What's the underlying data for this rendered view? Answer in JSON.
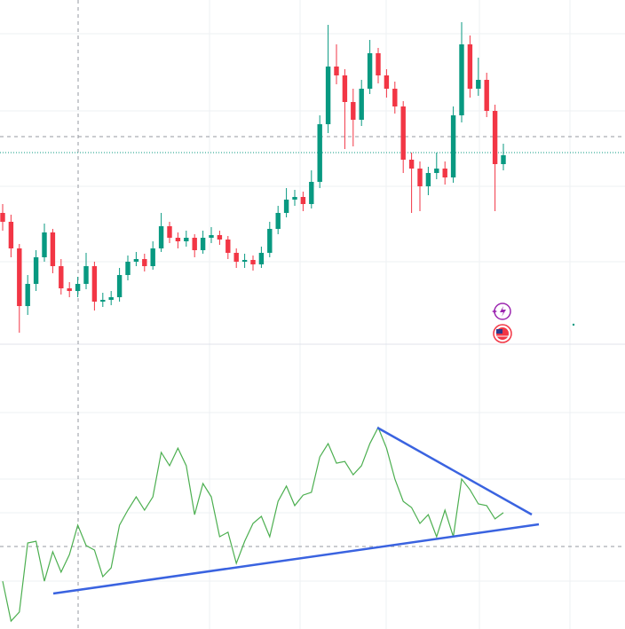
{
  "chart_data": [
    {
      "type": "candlestick",
      "up_color": "#089981",
      "down_color": "#f23645",
      "ylim": [
        0,
        390
      ],
      "open": [
        150,
        140,
        110,
        45,
        70,
        100,
        128,
        90,
        65,
        62,
        70,
        90,
        50,
        52,
        55,
        80,
        95,
        98,
        90,
        110,
        135,
        122,
        118,
        122,
        108,
        122,
        125,
        120,
        105,
        95,
        97,
        92,
        105,
        132,
        150,
        165,
        168,
        160,
        185,
        250,
        315,
        305,
        275,
        255,
        290,
        330,
        305,
        290,
        270,
        210,
        200,
        180,
        195,
        200,
        190,
        260,
        340,
        290,
        300,
        265,
        205
      ],
      "high": [
        160,
        148,
        115,
        80,
        108,
        138,
        132,
        98,
        72,
        78,
        105,
        95,
        60,
        62,
        88,
        102,
        106,
        104,
        118,
        150,
        140,
        128,
        130,
        126,
        130,
        134,
        130,
        124,
        110,
        104,
        102,
        112,
        140,
        158,
        178,
        176,
        174,
        198,
        260,
        362,
        340,
        312,
        290,
        300,
        345,
        336,
        312,
        298,
        276,
        218,
        208,
        202,
        218,
        208,
        270,
        365,
        350,
        325,
        308,
        272,
        228
      ],
      "low": [
        130,
        100,
        15,
        35,
        62,
        95,
        82,
        58,
        55,
        55,
        64,
        40,
        44,
        46,
        50,
        74,
        90,
        84,
        86,
        106,
        116,
        110,
        112,
        100,
        104,
        116,
        114,
        98,
        88,
        88,
        85,
        88,
        100,
        126,
        145,
        158,
        152,
        155,
        178,
        240,
        295,
        222,
        225,
        248,
        284,
        296,
        280,
        262,
        195,
        150,
        152,
        170,
        188,
        182,
        184,
        252,
        280,
        282,
        258,
        152,
        198
      ],
      "close": [
        140,
        110,
        45,
        70,
        100,
        128,
        90,
        65,
        62,
        70,
        90,
        50,
        52,
        55,
        80,
        95,
        98,
        90,
        110,
        135,
        122,
        118,
        122,
        108,
        122,
        125,
        120,
        105,
        95,
        97,
        92,
        105,
        132,
        150,
        165,
        168,
        160,
        185,
        250,
        315,
        305,
        275,
        255,
        290,
        330,
        305,
        290,
        270,
        210,
        200,
        180,
        195,
        200,
        190,
        260,
        340,
        290,
        300,
        265,
        205,
        215
      ]
    },
    {
      "type": "line",
      "color": "#4caf50",
      "ylim": [
        0,
        100
      ],
      "values": [
        16.9,
        2.8,
        6.0,
        30.4,
        31.0,
        16.9,
        27.3,
        20.1,
        26.3,
        36.7,
        29.5,
        27.9,
        18.5,
        21.6,
        36.7,
        42.0,
        46.7,
        42.0,
        46.7,
        62.4,
        57.7,
        63.9,
        57.7,
        40.4,
        51.4,
        46.7,
        32.6,
        34.2,
        23.2,
        31.0,
        37.3,
        39.8,
        32.6,
        45.1,
        50.5,
        43.6,
        47.3,
        48.3,
        60.8,
        65.5,
        58.6,
        59.2,
        54.5,
        57.7,
        65.5,
        71.2,
        63.9,
        53.0,
        45.1,
        42.9,
        37.3,
        40.4,
        32.6,
        42.0,
        32.6,
        53.0,
        49.2,
        44.2,
        43.6,
        38.9,
        41.1
      ]
    }
  ]
}
